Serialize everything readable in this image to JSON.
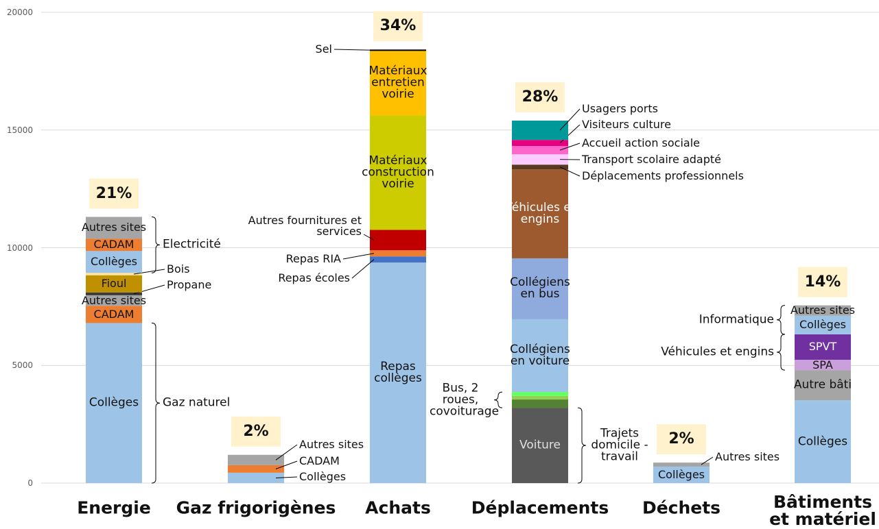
{
  "chart_data": {
    "type": "stacked-bar",
    "ylim": [
      0,
      20000
    ],
    "yticks": [
      0,
      5000,
      10000,
      15000,
      20000
    ],
    "grid": true,
    "categories": [
      "Energie",
      "Gaz frigorigènes",
      "Achats",
      "Déplacements",
      "Déchets",
      "Bâtiments et matériel"
    ],
    "shares": [
      21,
      2,
      34,
      28,
      2,
      14
    ],
    "share_labels": [
      "21%",
      "2%",
      "34%",
      "28%",
      "2%",
      "14%"
    ],
    "bars": [
      {
        "parts": [
          {
            "label": "Gaz naturel",
            "segments": [
              {
                "label": "Collèges",
                "value": 6800,
                "color": "#9dc3e6"
              }
            ]
          },
          {
            "label": "CADAM",
            "value": 730,
            "color": "#ed7d31"
          },
          {
            "label": "Autres sites",
            "value": 450,
            "color": "#a5a5a5"
          },
          {
            "label": "Propane",
            "value": 120,
            "color": "#3a3a3a"
          },
          {
            "label": "Fioul",
            "value": 730,
            "color": "#bf9000"
          },
          {
            "label": "Bois",
            "value": 100,
            "color": "#ffe699"
          },
          {
            "label": "Electricité",
            "segments": [
              {
                "label": "Collèges",
                "value": 930,
                "color": "#9dc3e6"
              },
              {
                "label": "CADAM",
                "value": 520,
                "color": "#ed7d31"
              },
              {
                "label": "Autres sites",
                "value": 930,
                "color": "#a5a5a5"
              }
            ]
          }
        ]
      },
      {
        "parts": [
          {
            "label": "Collèges",
            "value": 440,
            "color": "#9dc3e6"
          },
          {
            "label": "CADAM",
            "value": 320,
            "color": "#ed7d31"
          },
          {
            "label": "Autres sites",
            "value": 440,
            "color": "#a5a5a5"
          }
        ]
      },
      {
        "parts": [
          {
            "label": "Repas collèges",
            "value": 9370,
            "color": "#9dc3e6"
          },
          {
            "label": "Repas écoles",
            "value": 260,
            "color": "#4472c4"
          },
          {
            "label": "Repas RIA",
            "value": 260,
            "color": "#ed7d31"
          },
          {
            "label": "Autres fournitures et services",
            "value": 870,
            "color": "#c00000"
          },
          {
            "label": "Matériaux construction voirie",
            "value": 4860,
            "color": "#cccc00"
          },
          {
            "label": "Matériaux entretien voirie",
            "value": 2740,
            "color": "#ffc000"
          },
          {
            "label": "Sel",
            "value": 60,
            "color": "#000000"
          }
        ]
      },
      {
        "parts": [
          {
            "label": "Trajets domicile - travail",
            "segments": [
              {
                "label": "Voiture",
                "value": 3200,
                "color": "#595959"
              }
            ]
          },
          {
            "label": "Bus, 2 roues, covoiturage",
            "segments": [
              {
                "value": 350,
                "color": "#548235"
              },
              {
                "value": 150,
                "color": "#92d050"
              },
              {
                "value": 170,
                "color": "#66ff66"
              }
            ]
          },
          {
            "label": "Collégiens en voiture",
            "value": 3090,
            "color": "#9dc3e6"
          },
          {
            "label": "Collégiens en bus",
            "value": 2590,
            "color": "#8faadc"
          },
          {
            "label": "Véhicules et engins",
            "value": 3780,
            "color": "#9c5a2e"
          },
          {
            "label": "Déplacements professionnels",
            "value": 200,
            "color": "#5a3a22"
          },
          {
            "label": "Transport scolaire adapté",
            "value": 440,
            "color": "#ffccff"
          },
          {
            "label": "Accueil action sociale",
            "value": 350,
            "color": "#ff66cc"
          },
          {
            "label": "Visiteurs culture",
            "value": 260,
            "color": "#e6007e"
          },
          {
            "label": "Usagers ports",
            "value": 820,
            "color": "#009999"
          }
        ]
      },
      {
        "parts": [
          {
            "label": "Collèges",
            "value": 700,
            "color": "#9dc3e6"
          },
          {
            "label": "Autres sites",
            "value": 170,
            "color": "#a5a5a5"
          }
        ]
      },
      {
        "parts": [
          {
            "label": "Collèges",
            "value": 3520,
            "color": "#9dc3e6"
          },
          {
            "label": "Autre bâti",
            "value": 1280,
            "color": "#a5a5a5"
          },
          {
            "label": "Véhicules et engins",
            "segments": [
              {
                "label": "SPA",
                "value": 440,
                "color": "#c9a0dc"
              },
              {
                "label": "SPVT",
                "value": 1080,
                "color": "#7030a0"
              }
            ]
          },
          {
            "label": "Informatique",
            "segments": [
              {
                "label": "Collèges",
                "value": 790,
                "color": "#9dc3e6"
              },
              {
                "label": "Autres sites",
                "value": 440,
                "color": "#a5a5a5"
              }
            ]
          }
        ]
      }
    ]
  }
}
